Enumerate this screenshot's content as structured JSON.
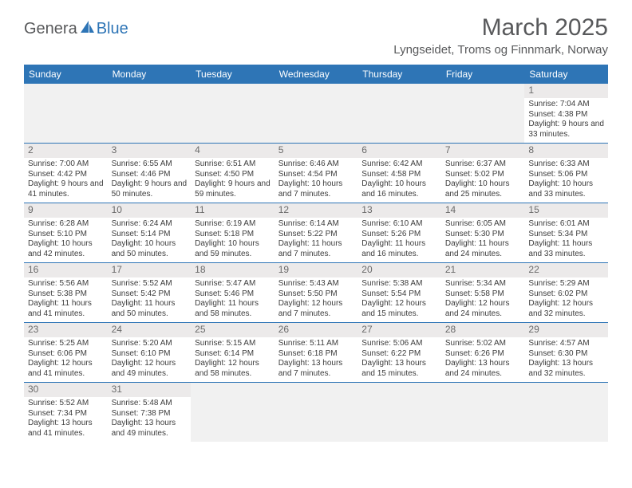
{
  "logo": {
    "text1": "Genera",
    "text2": "Blue"
  },
  "title": {
    "month": "March 2025",
    "location": "Lyngseidet, Troms og Finnmark, Norway"
  },
  "colors": {
    "brand_blue": "#2e75b6",
    "header_bg": "#2e75b6",
    "header_text": "#ffffff",
    "page_bg": "#ffffff",
    "text_gray": "#58595b",
    "cell_text": "#3c3c3c",
    "daynum_bg": "#eceaea",
    "daynum_text": "#6a6a6a",
    "blank_bg": "#f1f1f1",
    "rule": "#2e75b6"
  },
  "dayhead": [
    "Sunday",
    "Monday",
    "Tuesday",
    "Wednesday",
    "Thursday",
    "Friday",
    "Saturday"
  ],
  "weeks": [
    [
      {
        "blank": true
      },
      {
        "blank": true
      },
      {
        "blank": true
      },
      {
        "blank": true
      },
      {
        "blank": true
      },
      {
        "blank": true
      },
      {
        "n": "1",
        "sr": "7:04 AM",
        "ss": "4:38 PM",
        "dl": "9 hours and 33 minutes."
      }
    ],
    [
      {
        "n": "2",
        "sr": "7:00 AM",
        "ss": "4:42 PM",
        "dl": "9 hours and 41 minutes."
      },
      {
        "n": "3",
        "sr": "6:55 AM",
        "ss": "4:46 PM",
        "dl": "9 hours and 50 minutes."
      },
      {
        "n": "4",
        "sr": "6:51 AM",
        "ss": "4:50 PM",
        "dl": "9 hours and 59 minutes."
      },
      {
        "n": "5",
        "sr": "6:46 AM",
        "ss": "4:54 PM",
        "dl": "10 hours and 7 minutes."
      },
      {
        "n": "6",
        "sr": "6:42 AM",
        "ss": "4:58 PM",
        "dl": "10 hours and 16 minutes."
      },
      {
        "n": "7",
        "sr": "6:37 AM",
        "ss": "5:02 PM",
        "dl": "10 hours and 25 minutes."
      },
      {
        "n": "8",
        "sr": "6:33 AM",
        "ss": "5:06 PM",
        "dl": "10 hours and 33 minutes."
      }
    ],
    [
      {
        "n": "9",
        "sr": "6:28 AM",
        "ss": "5:10 PM",
        "dl": "10 hours and 42 minutes."
      },
      {
        "n": "10",
        "sr": "6:24 AM",
        "ss": "5:14 PM",
        "dl": "10 hours and 50 minutes."
      },
      {
        "n": "11",
        "sr": "6:19 AM",
        "ss": "5:18 PM",
        "dl": "10 hours and 59 minutes."
      },
      {
        "n": "12",
        "sr": "6:14 AM",
        "ss": "5:22 PM",
        "dl": "11 hours and 7 minutes."
      },
      {
        "n": "13",
        "sr": "6:10 AM",
        "ss": "5:26 PM",
        "dl": "11 hours and 16 minutes."
      },
      {
        "n": "14",
        "sr": "6:05 AM",
        "ss": "5:30 PM",
        "dl": "11 hours and 24 minutes."
      },
      {
        "n": "15",
        "sr": "6:01 AM",
        "ss": "5:34 PM",
        "dl": "11 hours and 33 minutes."
      }
    ],
    [
      {
        "n": "16",
        "sr": "5:56 AM",
        "ss": "5:38 PM",
        "dl": "11 hours and 41 minutes."
      },
      {
        "n": "17",
        "sr": "5:52 AM",
        "ss": "5:42 PM",
        "dl": "11 hours and 50 minutes."
      },
      {
        "n": "18",
        "sr": "5:47 AM",
        "ss": "5:46 PM",
        "dl": "11 hours and 58 minutes."
      },
      {
        "n": "19",
        "sr": "5:43 AM",
        "ss": "5:50 PM",
        "dl": "12 hours and 7 minutes."
      },
      {
        "n": "20",
        "sr": "5:38 AM",
        "ss": "5:54 PM",
        "dl": "12 hours and 15 minutes."
      },
      {
        "n": "21",
        "sr": "5:34 AM",
        "ss": "5:58 PM",
        "dl": "12 hours and 24 minutes."
      },
      {
        "n": "22",
        "sr": "5:29 AM",
        "ss": "6:02 PM",
        "dl": "12 hours and 32 minutes."
      }
    ],
    [
      {
        "n": "23",
        "sr": "5:25 AM",
        "ss": "6:06 PM",
        "dl": "12 hours and 41 minutes."
      },
      {
        "n": "24",
        "sr": "5:20 AM",
        "ss": "6:10 PM",
        "dl": "12 hours and 49 minutes."
      },
      {
        "n": "25",
        "sr": "5:15 AM",
        "ss": "6:14 PM",
        "dl": "12 hours and 58 minutes."
      },
      {
        "n": "26",
        "sr": "5:11 AM",
        "ss": "6:18 PM",
        "dl": "13 hours and 7 minutes."
      },
      {
        "n": "27",
        "sr": "5:06 AM",
        "ss": "6:22 PM",
        "dl": "13 hours and 15 minutes."
      },
      {
        "n": "28",
        "sr": "5:02 AM",
        "ss": "6:26 PM",
        "dl": "13 hours and 24 minutes."
      },
      {
        "n": "29",
        "sr": "4:57 AM",
        "ss": "6:30 PM",
        "dl": "13 hours and 32 minutes."
      }
    ],
    [
      {
        "n": "30",
        "sr": "5:52 AM",
        "ss": "7:34 PM",
        "dl": "13 hours and 41 minutes."
      },
      {
        "n": "31",
        "sr": "5:48 AM",
        "ss": "7:38 PM",
        "dl": "13 hours and 49 minutes."
      },
      {
        "blank": true
      },
      {
        "blank": true
      },
      {
        "blank": true
      },
      {
        "blank": true
      },
      {
        "blank": true
      }
    ]
  ],
  "labels": {
    "sunrise_prefix": "Sunrise: ",
    "sunset_prefix": "Sunset: ",
    "daylight_prefix": "Daylight: "
  }
}
